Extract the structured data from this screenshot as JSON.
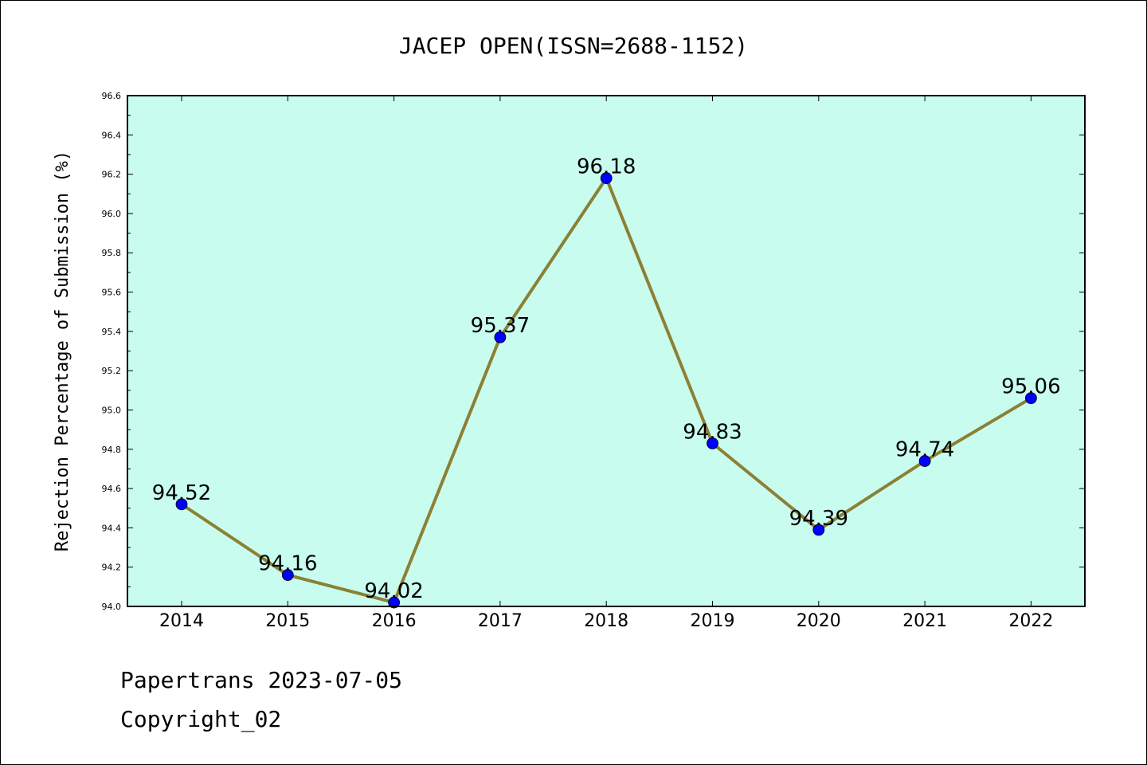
{
  "chart_data": {
    "type": "line",
    "title": "JACEP OPEN(ISSN=2688-1152)",
    "ylabel": "Rejection Percentage of Submission (%)",
    "xlabel": "",
    "categories": [
      "2014",
      "2015",
      "2016",
      "2017",
      "2018",
      "2019",
      "2020",
      "2021",
      "2022"
    ],
    "values": [
      94.52,
      94.16,
      94.02,
      95.37,
      96.18,
      94.83,
      94.39,
      94.74,
      95.06
    ],
    "data_labels": [
      "94.52",
      "94.16",
      "94.02",
      "95.37",
      "96.18",
      "94.83",
      "94.39",
      "94.74",
      "95.06"
    ],
    "ylim": [
      94.0,
      96.6
    ],
    "yticks": [
      "94.0",
      "94.2",
      "94.4",
      "94.6",
      "94.8",
      "95.0",
      "95.2",
      "95.4",
      "95.6",
      "95.8",
      "96.0",
      "96.2",
      "96.4",
      "96.6"
    ],
    "grid": false,
    "colors": {
      "plot_bg": "#c8fcee",
      "line": "#8b8035",
      "marker": "#0000ff"
    }
  },
  "footer": {
    "line1": "Papertrans 2023-07-05",
    "line2": "Copyright_02"
  }
}
